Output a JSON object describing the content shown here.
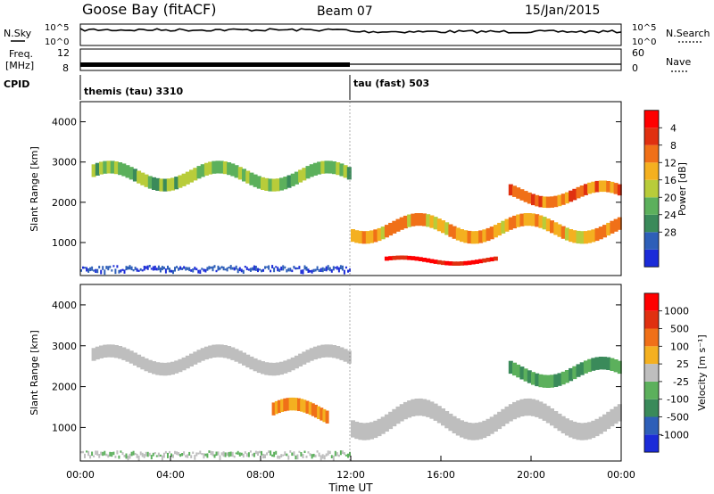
{
  "header": {
    "station": "Goose Bay (fitACF)",
    "beam": "Beam 07",
    "date": "15/Jan/2015"
  },
  "status_panels": {
    "nsky_label": "N.Sky",
    "nsearch_label": "N.Search",
    "freq_label_top": "Freq.",
    "freq_label_bottom": "[MHz]",
    "nave_label": "Nave",
    "cpid_label": "CPID",
    "noise_ticks": [
      "10^5",
      "10^0"
    ],
    "freq_ticks": [
      "12",
      "8"
    ],
    "nave_ticks": [
      "60",
      "0"
    ],
    "cpid_segments": [
      {
        "label": "themis (tau) 3310",
        "start_hour": 0,
        "end_hour": 12
      },
      {
        "label": "tau (fast) 503",
        "start_hour": 12,
        "end_hour": 24
      }
    ]
  },
  "chart_data": [
    {
      "type": "heatmap",
      "panel": "power",
      "xlabel": "",
      "ylabel": "Slant Range [km]",
      "xlim": [
        0,
        24
      ],
      "ylim": [
        180,
        4500
      ],
      "yticks": [
        1000,
        2000,
        3000,
        4000
      ],
      "colorbar": {
        "label": "Power [dB]",
        "ticks": [
          "4",
          "8",
          "12",
          "16",
          "20",
          "24",
          "28"
        ],
        "colors": [
          "#1b2bd8",
          "#2e5fb8",
          "#3a8a5a",
          "#5cb05c",
          "#b8cc3a",
          "#f4b020",
          "#f07018",
          "#e03010",
          "#ff0000"
        ]
      },
      "features": [
        {
          "name": "main echo band",
          "hours": [
            0.5,
            12
          ],
          "range_km": [
            2200,
            3100
          ],
          "power_db": 14
        },
        {
          "name": "lower band",
          "hours": [
            12,
            24
          ],
          "range_km": [
            900,
            1800
          ],
          "power_db": 22
        },
        {
          "name": "near-range strong echoes",
          "hours": [
            13.5,
            18.5
          ],
          "range_km": [
            400,
            700
          ],
          "power_db": 30
        },
        {
          "name": "late far echoes",
          "hours": [
            19,
            24
          ],
          "range_km": [
            1800,
            2600
          ],
          "power_db": 24
        }
      ]
    },
    {
      "type": "heatmap",
      "panel": "velocity",
      "xlabel": "Time UT",
      "ylabel": "Slant Range [km]",
      "xlim": [
        0,
        24
      ],
      "ylim": [
        180,
        4500
      ],
      "yticks": [
        1000,
        2000,
        3000,
        4000
      ],
      "xticks": [
        "00:00",
        "04:00",
        "08:00",
        "12:00",
        "16:00",
        "20:00",
        "00:00"
      ],
      "colorbar": {
        "label": "Velocity [m s⁻¹]",
        "ticks": [
          "1000",
          "500",
          "100",
          "25",
          "-25",
          "-100",
          "-500",
          "-1000"
        ],
        "colors": [
          "#1b2bd8",
          "#2e5fb8",
          "#3a8a5a",
          "#5cb05c",
          "#bebebe",
          "#f4b020",
          "#f07018",
          "#e03010",
          "#ff0000"
        ]
      },
      "features": [
        {
          "name": "ground scatter band",
          "hours": [
            0.5,
            12
          ],
          "range_km": [
            2200,
            3100
          ],
          "velocity_ms": 0
        },
        {
          "name": "ground scatter lower",
          "hours": [
            12,
            24
          ],
          "range_km": [
            600,
            1800
          ],
          "velocity_ms": 0
        },
        {
          "name": "receding arc",
          "hours": [
            8.5,
            11
          ],
          "range_km": [
            900,
            1800
          ],
          "velocity_ms": -100
        },
        {
          "name": "late approaching echoes",
          "hours": [
            19,
            24
          ],
          "range_km": [
            1900,
            2800
          ],
          "velocity_ms": 100
        }
      ]
    }
  ]
}
